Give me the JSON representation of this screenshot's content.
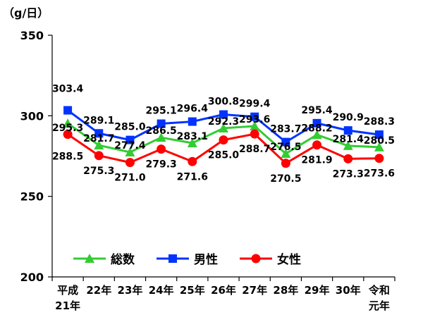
{
  "chart_data": {
    "type": "line",
    "unit_label": "（g/日）",
    "ylim": [
      200,
      350
    ],
    "yticks": [
      200,
      250,
      300,
      350
    ],
    "grid": false,
    "legend_position": "lower-left-inside",
    "categories": [
      [
        "平成",
        "21年"
      ],
      [
        "22年"
      ],
      [
        "23年"
      ],
      [
        "24年"
      ],
      [
        "25年"
      ],
      [
        "26年"
      ],
      [
        "27年"
      ],
      [
        "28年"
      ],
      [
        "29年"
      ],
      [
        "30年"
      ],
      [
        "令和",
        "元年"
      ]
    ],
    "series": [
      {
        "name": "総数",
        "color": "#33cc33",
        "marker": "triangle",
        "values": [
          295.3,
          281.7,
          277.4,
          286.5,
          283.1,
          292.3,
          293.6,
          276.5,
          288.2,
          281.4,
          280.5
        ]
      },
      {
        "name": "男性",
        "color": "#0033ff",
        "marker": "square",
        "values": [
          303.4,
          289.1,
          285.0,
          295.1,
          296.4,
          300.8,
          299.4,
          283.7,
          295.4,
          290.9,
          288.3
        ]
      },
      {
        "name": "女性",
        "color": "#ff0000",
        "marker": "circle",
        "values": [
          288.5,
          275.3,
          271.0,
          279.3,
          271.6,
          285.0,
          288.7,
          270.5,
          281.9,
          273.3,
          273.6
        ]
      }
    ]
  }
}
